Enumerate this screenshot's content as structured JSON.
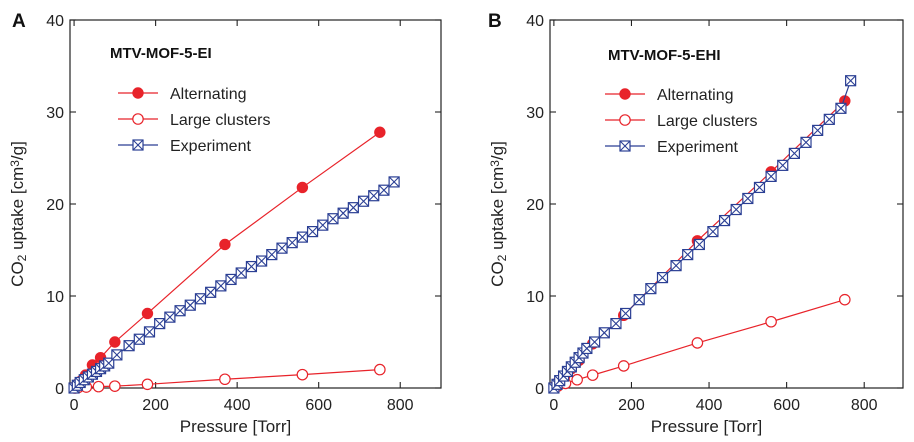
{
  "chart_data": [
    {
      "type": "scatter",
      "panel_label": "A",
      "title": "MTV-MOF-5-EI",
      "xlabel": "Pressure [Torr]",
      "ylabel_main": "CO",
      "ylabel_sub": "2",
      "ylabel_rest": " uptake [cm",
      "ylabel_sup": "3",
      "ylabel_end": "/g]",
      "xlim": [
        -10,
        900
      ],
      "ylim": [
        0,
        40
      ],
      "xticks": [
        0,
        200,
        400,
        600,
        800
      ],
      "yticks": [
        0,
        10,
        20,
        30,
        40
      ],
      "tick_labels_x": [
        "0",
        "200",
        "400",
        "600",
        "800"
      ],
      "tick_labels_y": [
        "0",
        "10",
        "20",
        "30",
        "40"
      ],
      "legend_position": "top-left",
      "colors": {
        "alternating": "#e8232a",
        "large_clusters": "#e8232a",
        "experiment": "#2b3f94"
      },
      "series": [
        {
          "name": "Alternating",
          "marker": "filled-circle",
          "x": [
            1,
            5,
            10,
            18,
            28,
            45,
            65,
            100,
            180,
            370,
            560,
            750
          ],
          "y": [
            0.1,
            0.25,
            0.5,
            0.8,
            1.4,
            2.5,
            3.3,
            5.0,
            8.1,
            15.6,
            21.8,
            27.8
          ]
        },
        {
          "name": "Large clusters",
          "marker": "open-circle",
          "x": [
            2,
            10,
            30,
            60,
            100,
            180,
            370,
            560,
            750
          ],
          "y": [
            0.0,
            0.05,
            0.1,
            0.15,
            0.2,
            0.4,
            0.95,
            1.45,
            2.0
          ]
        },
        {
          "name": "Experiment",
          "marker": "boxed-x",
          "x": [
            0,
            8,
            15,
            25,
            35,
            45,
            55,
            65,
            75,
            85,
            105,
            135,
            160,
            185,
            210,
            235,
            260,
            285,
            310,
            335,
            360,
            385,
            410,
            435,
            460,
            485,
            510,
            535,
            560,
            585,
            610,
            635,
            660,
            685,
            710,
            735,
            760,
            785
          ],
          "y": [
            0.0,
            0.3,
            0.6,
            0.9,
            1.2,
            1.5,
            1.8,
            2.1,
            2.4,
            2.7,
            3.6,
            4.6,
            5.3,
            6.1,
            7.0,
            7.7,
            8.4,
            9.0,
            9.7,
            10.4,
            11.1,
            11.8,
            12.5,
            13.2,
            13.8,
            14.5,
            15.2,
            15.8,
            16.4,
            17.0,
            17.7,
            18.4,
            19.0,
            19.6,
            20.3,
            20.9,
            21.5,
            22.4
          ]
        }
      ]
    },
    {
      "type": "scatter",
      "panel_label": "B",
      "title": "MTV-MOF-5-EHI",
      "xlabel": "Pressure [Torr]",
      "ylabel_main": "CO",
      "ylabel_sub": "2",
      "ylabel_rest": " uptake [cm",
      "ylabel_sup": "3",
      "ylabel_end": "/g]",
      "xlim": [
        -10,
        900
      ],
      "ylim": [
        0,
        40
      ],
      "xticks": [
        0,
        200,
        400,
        600,
        800
      ],
      "yticks": [
        0,
        10,
        20,
        30,
        40
      ],
      "tick_labels_x": [
        "0",
        "200",
        "400",
        "600",
        "800"
      ],
      "tick_labels_y": [
        "0",
        "10",
        "20",
        "30",
        "40"
      ],
      "legend_position": "top-left",
      "colors": {
        "alternating": "#e8232a",
        "large_clusters": "#e8232a",
        "experiment": "#2b3f94"
      },
      "series": [
        {
          "name": "Alternating",
          "marker": "filled-circle",
          "x": [
            1,
            5,
            10,
            18,
            28,
            45,
            65,
            100,
            180,
            370,
            560,
            750
          ],
          "y": [
            0.1,
            0.3,
            0.6,
            0.9,
            1.3,
            2.1,
            3.0,
            4.8,
            7.9,
            16.0,
            23.5,
            31.2
          ]
        },
        {
          "name": "Large clusters",
          "marker": "open-circle",
          "x": [
            2,
            10,
            30,
            60,
            100,
            180,
            370,
            560,
            750
          ],
          "y": [
            0.05,
            0.2,
            0.5,
            0.9,
            1.4,
            2.4,
            4.9,
            7.2,
            9.6
          ]
        },
        {
          "name": "Experiment",
          "marker": "boxed-x",
          "x": [
            0,
            8,
            15,
            25,
            35,
            45,
            55,
            65,
            75,
            85,
            105,
            130,
            160,
            185,
            220,
            250,
            280,
            315,
            345,
            375,
            410,
            440,
            470,
            500,
            530,
            560,
            590,
            620,
            650,
            680,
            710,
            740,
            765
          ],
          "y": [
            0.0,
            0.4,
            0.8,
            1.3,
            1.8,
            2.3,
            2.8,
            3.3,
            3.8,
            4.3,
            5.0,
            6.0,
            7.0,
            8.1,
            9.6,
            10.8,
            12.0,
            13.3,
            14.5,
            15.6,
            17.0,
            18.2,
            19.4,
            20.6,
            21.8,
            23.0,
            24.2,
            25.5,
            26.7,
            28.0,
            29.2,
            30.4,
            33.4
          ]
        }
      ]
    }
  ]
}
